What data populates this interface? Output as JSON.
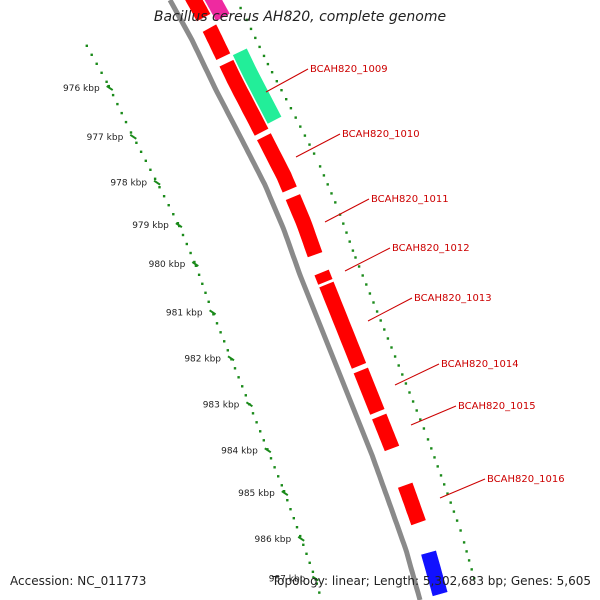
{
  "title": "Bacillus cereus AH820, complete genome",
  "footer": {
    "accession": "Accession: NC_011773",
    "summary": "Topology: linear; Length: 5,302,683 bp; Genes: 5,605"
  },
  "ruler": {
    "ticks": [
      "976 kbp",
      "977 kbp",
      "978 kbp",
      "979 kbp",
      "980 kbp",
      "981 kbp",
      "982 kbp",
      "983 kbp",
      "984 kbp",
      "985 kbp",
      "986 kbp",
      "987 kbp"
    ]
  },
  "gene_labels": [
    "BCAH820_1009",
    "BCAH820_1010",
    "BCAH820_1011",
    "BCAH820_1012",
    "BCAH820_1013",
    "BCAH820_1014",
    "BCAH820_1015",
    "BCAH820_1016"
  ],
  "colors": {
    "cds": "#ff0000",
    "cds_dark": "#b00000",
    "pink": "#ee2aa0",
    "teal": "#22ee99",
    "blue": "#1111ff",
    "backbone": "#8a8a8a",
    "ruler": "#1a8a1a",
    "label": "#cc0000"
  }
}
